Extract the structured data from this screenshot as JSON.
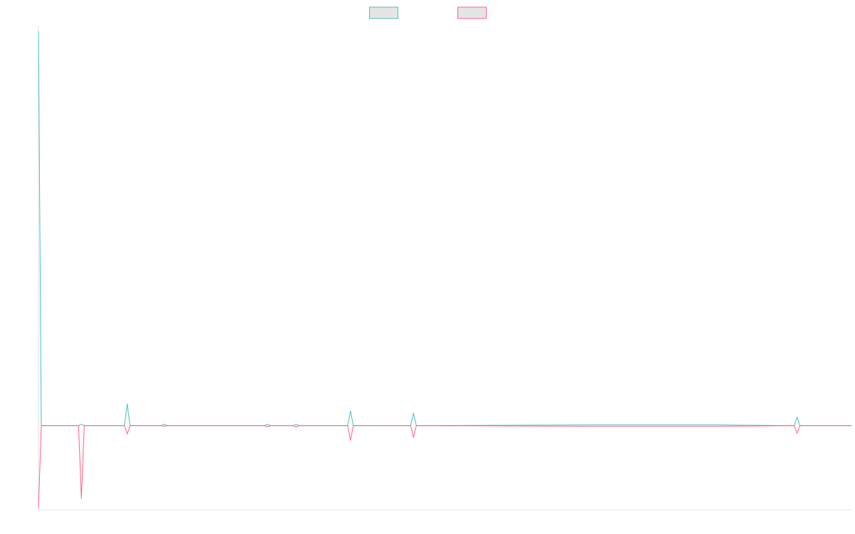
{
  "colors": {
    "series_a": "#4bc0c0",
    "series_b": "#ff6384",
    "swatch_fill": "#e5e5e5",
    "axis": "#e6e6e6",
    "baseline": "#7f7f7f"
  },
  "legend": {
    "placement": "top-center",
    "items": [
      {
        "label": "",
        "color": "#4bc0c0"
      },
      {
        "label": "",
        "color": "#ff6384"
      }
    ]
  },
  "chart_data": {
    "type": "line",
    "title": "",
    "xlabel": "",
    "ylabel": "",
    "grid": false,
    "xlim": [
      0,
      284
    ],
    "ylim": [
      -120,
      570
    ],
    "x": [
      0,
      1,
      2,
      14,
      15,
      16,
      30,
      31,
      32,
      43,
      44,
      45,
      79,
      80,
      81,
      89,
      90,
      91,
      108,
      109,
      110,
      130,
      131,
      132,
      195,
      235,
      264,
      265,
      266,
      284
    ],
    "series": [
      {
        "name": "",
        "color": "#4bc0c0",
        "values": [
          562,
          0,
          0,
          0,
          2,
          0,
          0,
          31,
          0,
          0,
          2,
          0,
          0,
          2,
          0,
          0,
          2,
          0,
          0,
          21,
          0,
          0,
          18,
          0,
          1,
          1,
          0,
          12,
          0,
          0
        ]
      },
      {
        "name": "",
        "color": "#ff6384",
        "values": [
          -118,
          0,
          0,
          0,
          -104,
          0,
          0,
          -12,
          0,
          0,
          -1,
          0,
          0,
          -2,
          0,
          0,
          -2,
          0,
          0,
          -21,
          0,
          0,
          -17,
          0,
          -1,
          -1,
          0,
          -11,
          0,
          0
        ]
      }
    ]
  }
}
